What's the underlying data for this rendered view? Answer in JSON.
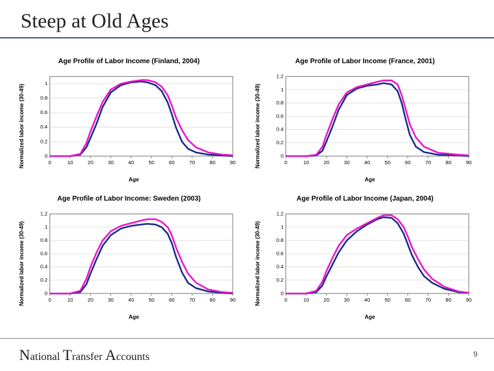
{
  "title": "Steep at Old Ages",
  "footer": "National Transfer Accounts",
  "page_number": "9",
  "xlabel": "Age",
  "colors": {
    "series1": "#1a2a8a",
    "series2": "#e815c8",
    "grid": "#cccccc",
    "axis": "#888888",
    "plot_border": "#888888"
  },
  "charts": [
    {
      "title": "Age Profile of Labor Income (Finland, 2004)",
      "ylabel": "Normalized labor income (30-49)",
      "xlim": [
        0,
        90
      ],
      "ylim": [
        0,
        1.1
      ],
      "ytick_step": 0.2,
      "xticks": [
        0,
        10,
        20,
        30,
        40,
        50,
        60,
        70,
        80,
        90
      ],
      "series": [
        {
          "color": "series1",
          "pts": [
            [
              0,
              0.0
            ],
            [
              5,
              0.0
            ],
            [
              10,
              0.0
            ],
            [
              15,
              0.02
            ],
            [
              18,
              0.12
            ],
            [
              20,
              0.25
            ],
            [
              23,
              0.45
            ],
            [
              26,
              0.68
            ],
            [
              30,
              0.88
            ],
            [
              35,
              0.98
            ],
            [
              40,
              1.02
            ],
            [
              45,
              1.03
            ],
            [
              48,
              1.02
            ],
            [
              52,
              0.98
            ],
            [
              55,
              0.9
            ],
            [
              58,
              0.74
            ],
            [
              60,
              0.58
            ],
            [
              62,
              0.4
            ],
            [
              65,
              0.2
            ],
            [
              68,
              0.1
            ],
            [
              72,
              0.05
            ],
            [
              78,
              0.02
            ],
            [
              85,
              0.01
            ],
            [
              90,
              0.0
            ]
          ]
        },
        {
          "color": "series2",
          "pts": [
            [
              0,
              0.0
            ],
            [
              5,
              0.0
            ],
            [
              10,
              0.0
            ],
            [
              15,
              0.03
            ],
            [
              18,
              0.18
            ],
            [
              20,
              0.34
            ],
            [
              23,
              0.55
            ],
            [
              26,
              0.75
            ],
            [
              30,
              0.92
            ],
            [
              35,
              1.0
            ],
            [
              40,
              1.03
            ],
            [
              45,
              1.05
            ],
            [
              48,
              1.05
            ],
            [
              52,
              1.02
            ],
            [
              55,
              0.96
            ],
            [
              58,
              0.84
            ],
            [
              60,
              0.7
            ],
            [
              62,
              0.54
            ],
            [
              65,
              0.36
            ],
            [
              68,
              0.22
            ],
            [
              72,
              0.12
            ],
            [
              78,
              0.05
            ],
            [
              85,
              0.02
            ],
            [
              90,
              0.01
            ]
          ]
        }
      ]
    },
    {
      "title": "Age Profile of Labor Income (France, 2001)",
      "ylabel": "Normalized labor income (30-49)",
      "xlim": [
        0,
        90
      ],
      "ylim": [
        0,
        1.2
      ],
      "ytick_step": 0.2,
      "xticks": [
        0,
        10,
        20,
        30,
        40,
        50,
        60,
        70,
        80,
        90
      ],
      "series": [
        {
          "color": "series1",
          "pts": [
            [
              0,
              0.0
            ],
            [
              5,
              0.0
            ],
            [
              10,
              0.0
            ],
            [
              15,
              0.01
            ],
            [
              18,
              0.08
            ],
            [
              20,
              0.22
            ],
            [
              23,
              0.45
            ],
            [
              26,
              0.7
            ],
            [
              30,
              0.92
            ],
            [
              35,
              1.02
            ],
            [
              40,
              1.06
            ],
            [
              45,
              1.08
            ],
            [
              48,
              1.1
            ],
            [
              52,
              1.08
            ],
            [
              55,
              0.98
            ],
            [
              57,
              0.8
            ],
            [
              59,
              0.55
            ],
            [
              61,
              0.32
            ],
            [
              64,
              0.14
            ],
            [
              68,
              0.06
            ],
            [
              75,
              0.02
            ],
            [
              85,
              0.01
            ],
            [
              90,
              0.0
            ]
          ]
        },
        {
          "color": "series2",
          "pts": [
            [
              0,
              0.0
            ],
            [
              5,
              0.0
            ],
            [
              10,
              0.0
            ],
            [
              15,
              0.02
            ],
            [
              18,
              0.14
            ],
            [
              20,
              0.32
            ],
            [
              23,
              0.56
            ],
            [
              26,
              0.78
            ],
            [
              30,
              0.96
            ],
            [
              35,
              1.04
            ],
            [
              40,
              1.08
            ],
            [
              45,
              1.12
            ],
            [
              48,
              1.14
            ],
            [
              52,
              1.14
            ],
            [
              55,
              1.08
            ],
            [
              57,
              0.92
            ],
            [
              59,
              0.7
            ],
            [
              61,
              0.48
            ],
            [
              64,
              0.28
            ],
            [
              68,
              0.14
            ],
            [
              75,
              0.05
            ],
            [
              85,
              0.02
            ],
            [
              90,
              0.01
            ]
          ]
        }
      ]
    },
    {
      "title": "Age Profile of Labor Income: Sweden (2003)",
      "ylabel": "Normalized labor income (30-49)",
      "xlim": [
        0,
        90
      ],
      "ylim": [
        0,
        1.2
      ],
      "ytick_step": 0.2,
      "xticks": [
        0,
        10,
        20,
        30,
        40,
        50,
        60,
        70,
        80,
        90
      ],
      "series": [
        {
          "color": "series1",
          "pts": [
            [
              0,
              0.0
            ],
            [
              5,
              0.0
            ],
            [
              10,
              0.0
            ],
            [
              15,
              0.02
            ],
            [
              18,
              0.14
            ],
            [
              20,
              0.3
            ],
            [
              23,
              0.52
            ],
            [
              26,
              0.72
            ],
            [
              30,
              0.88
            ],
            [
              35,
              0.98
            ],
            [
              40,
              1.02
            ],
            [
              45,
              1.04
            ],
            [
              48,
              1.05
            ],
            [
              52,
              1.04
            ],
            [
              55,
              1.0
            ],
            [
              58,
              0.9
            ],
            [
              60,
              0.76
            ],
            [
              62,
              0.56
            ],
            [
              65,
              0.32
            ],
            [
              68,
              0.16
            ],
            [
              72,
              0.08
            ],
            [
              78,
              0.03
            ],
            [
              85,
              0.01
            ],
            [
              90,
              0.0
            ]
          ]
        },
        {
          "color": "series2",
          "pts": [
            [
              0,
              0.0
            ],
            [
              5,
              0.0
            ],
            [
              10,
              0.0
            ],
            [
              15,
              0.04
            ],
            [
              18,
              0.22
            ],
            [
              20,
              0.4
            ],
            [
              23,
              0.62
            ],
            [
              26,
              0.8
            ],
            [
              30,
              0.94
            ],
            [
              35,
              1.02
            ],
            [
              40,
              1.06
            ],
            [
              45,
              1.1
            ],
            [
              48,
              1.12
            ],
            [
              52,
              1.12
            ],
            [
              55,
              1.08
            ],
            [
              58,
              1.0
            ],
            [
              60,
              0.88
            ],
            [
              62,
              0.7
            ],
            [
              65,
              0.48
            ],
            [
              68,
              0.3
            ],
            [
              72,
              0.16
            ],
            [
              78,
              0.06
            ],
            [
              85,
              0.02
            ],
            [
              90,
              0.01
            ]
          ]
        }
      ]
    },
    {
      "title": "Age Profile of Labor Income (Japan, 2004)",
      "ylabel": "Normalized labor income (30-49)",
      "xlim": [
        0,
        90
      ],
      "ylim": [
        0,
        1.2
      ],
      "ytick_step": 0.2,
      "xticks": [
        0,
        10,
        20,
        30,
        40,
        50,
        60,
        70,
        80,
        90
      ],
      "series": [
        {
          "color": "series1",
          "pts": [
            [
              0,
              0.0
            ],
            [
              5,
              0.0
            ],
            [
              10,
              0.0
            ],
            [
              15,
              0.02
            ],
            [
              18,
              0.12
            ],
            [
              20,
              0.26
            ],
            [
              23,
              0.44
            ],
            [
              26,
              0.62
            ],
            [
              30,
              0.8
            ],
            [
              35,
              0.94
            ],
            [
              40,
              1.04
            ],
            [
              45,
              1.12
            ],
            [
              48,
              1.15
            ],
            [
              52,
              1.14
            ],
            [
              55,
              1.06
            ],
            [
              58,
              0.9
            ],
            [
              60,
              0.74
            ],
            [
              62,
              0.58
            ],
            [
              65,
              0.4
            ],
            [
              68,
              0.26
            ],
            [
              72,
              0.16
            ],
            [
              78,
              0.07
            ],
            [
              85,
              0.02
            ],
            [
              90,
              0.01
            ]
          ]
        },
        {
          "color": "series2",
          "pts": [
            [
              0,
              0.0
            ],
            [
              5,
              0.0
            ],
            [
              10,
              0.0
            ],
            [
              15,
              0.04
            ],
            [
              18,
              0.18
            ],
            [
              20,
              0.34
            ],
            [
              23,
              0.54
            ],
            [
              26,
              0.72
            ],
            [
              30,
              0.88
            ],
            [
              35,
              0.98
            ],
            [
              40,
              1.06
            ],
            [
              45,
              1.14
            ],
            [
              48,
              1.18
            ],
            [
              52,
              1.18
            ],
            [
              55,
              1.12
            ],
            [
              58,
              1.0
            ],
            [
              60,
              0.86
            ],
            [
              62,
              0.7
            ],
            [
              65,
              0.52
            ],
            [
              68,
              0.36
            ],
            [
              72,
              0.22
            ],
            [
              78,
              0.1
            ],
            [
              85,
              0.03
            ],
            [
              90,
              0.01
            ]
          ]
        }
      ]
    }
  ]
}
